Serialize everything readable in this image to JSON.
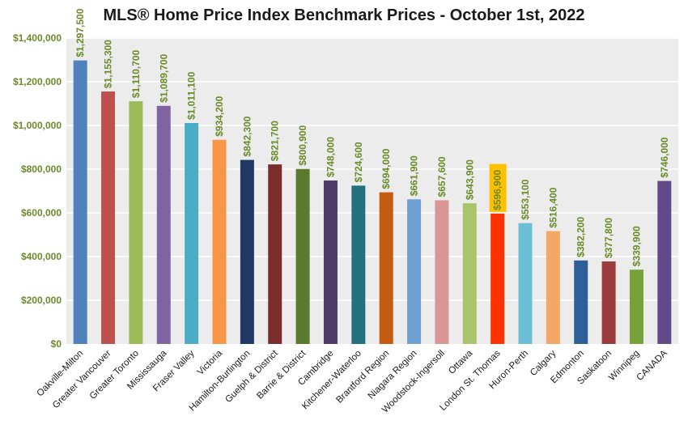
{
  "chart_data": {
    "type": "bar",
    "title": "MLS® Home Price Index Benchmark Prices - October 1st, 2022",
    "xlabel": "",
    "ylabel": "",
    "ylim": [
      0,
      1400000
    ],
    "grid": true,
    "legend": "none",
    "y_ticks": [
      0,
      200000,
      400000,
      600000,
      800000,
      1000000,
      1200000,
      1400000
    ],
    "y_tick_labels": [
      "$0",
      "$200,000",
      "$400,000",
      "$600,000",
      "$800,000",
      "$1,000,000",
      "$1,200,000",
      "$1,400,000"
    ],
    "categories": [
      "Oakville-Milton",
      "Greater Vancouver",
      "Greater Toronto",
      "Mississauga",
      "Fraser Valley",
      "Victoria",
      "Hamilton-Burlington",
      "Guelph & District",
      "Barrie & District",
      "Cambridge",
      "Kitchener-Waterloo",
      "Brantford Region",
      "Niagara Region",
      "Woodstock-Ingersoll",
      "Ottawa",
      "London St. Thomas",
      "Huron-Perth",
      "Calgary",
      "Edmonton",
      "Saskatoon",
      "Winnipeg",
      "CANADA"
    ],
    "values": [
      1297500,
      1155300,
      1110700,
      1089700,
      1011100,
      934200,
      842300,
      821700,
      800900,
      748000,
      724600,
      694000,
      661900,
      657600,
      643900,
      596900,
      553100,
      516400,
      382200,
      377800,
      339900,
      746000
    ],
    "data_labels": [
      "$1,297,500",
      "$1,155,300",
      "$1,110,700",
      "$1,089,700",
      "$1,011,100",
      "$934,200",
      "$842,300",
      "$821,700",
      "$800,900",
      "$748,000",
      "$724,600",
      "$694,000",
      "$661,900",
      "$657,600",
      "$643,900",
      "$596,900",
      "$553,100",
      "$516,400",
      "$382,200",
      "$377,800",
      "$339,900",
      "$746,000"
    ],
    "colors": [
      "#4f81bd",
      "#c0504d",
      "#9bbb59",
      "#8064a2",
      "#4bacc6",
      "#f79646",
      "#1f3864",
      "#7b2c2c",
      "#5a7a2e",
      "#4e3b67",
      "#21717f",
      "#c55a11",
      "#6f9fd2",
      "#d99694",
      "#a9c46a",
      "#ff3300",
      "#6cbfd5",
      "#f4a868",
      "#2f5f98",
      "#9b3a3a",
      "#77a03a",
      "#604a87"
    ],
    "highlighted_label_index": 15,
    "highlight_color": "#ffc000",
    "label_color": "#6d8a2a",
    "plot_background": "#ececec",
    "grid_color": "#ffffff"
  }
}
